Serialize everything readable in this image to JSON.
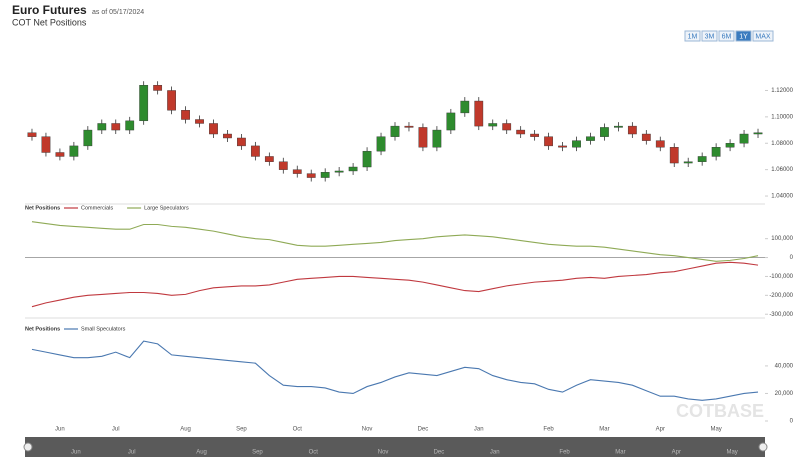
{
  "header": {
    "title": "Euro Futures",
    "as_of": "as of 05/17/2024",
    "subtitle": "COT Net Positions"
  },
  "range_buttons": [
    "1M",
    "3M",
    "6M",
    "1Y",
    "MAX"
  ],
  "active_button": "1Y",
  "watermark": "COTBASE",
  "chart_data": [
    {
      "type": "candlestick",
      "up_color": "#2e8b2e",
      "down_color": "#c0392b",
      "open": [
        1.088,
        1.085,
        1.073,
        1.07,
        1.078,
        1.09,
        1.095,
        1.09,
        1.097,
        1.124,
        1.12,
        1.105,
        1.098,
        1.095,
        1.087,
        1.084,
        1.078,
        1.07,
        1.066,
        1.06,
        1.057,
        1.054,
        1.058,
        1.059,
        1.062,
        1.074,
        1.085,
        1.093,
        1.092,
        1.077,
        1.09,
        1.103,
        1.112,
        1.093,
        1.095,
        1.09,
        1.087,
        1.085,
        1.078,
        1.077,
        1.082,
        1.085,
        1.092,
        1.093,
        1.087,
        1.082,
        1.077,
        1.065,
        1.066,
        1.07,
        1.077,
        1.08,
        1.087
      ],
      "high": [
        1.091,
        1.088,
        1.076,
        1.081,
        1.093,
        1.098,
        1.098,
        1.1,
        1.127,
        1.127,
        1.123,
        1.108,
        1.101,
        1.098,
        1.09,
        1.087,
        1.081,
        1.073,
        1.069,
        1.063,
        1.06,
        1.061,
        1.062,
        1.065,
        1.077,
        1.088,
        1.096,
        1.096,
        1.095,
        1.093,
        1.106,
        1.115,
        1.115,
        1.098,
        1.098,
        1.093,
        1.09,
        1.088,
        1.081,
        1.085,
        1.088,
        1.095,
        1.096,
        1.096,
        1.09,
        1.085,
        1.08,
        1.069,
        1.073,
        1.08,
        1.083,
        1.09,
        1.091
      ],
      "low": [
        1.082,
        1.07,
        1.067,
        1.067,
        1.075,
        1.087,
        1.087,
        1.087,
        1.094,
        1.117,
        1.102,
        1.095,
        1.092,
        1.084,
        1.081,
        1.075,
        1.067,
        1.063,
        1.057,
        1.054,
        1.051,
        1.051,
        1.055,
        1.056,
        1.059,
        1.071,
        1.082,
        1.089,
        1.074,
        1.074,
        1.087,
        1.1,
        1.09,
        1.09,
        1.087,
        1.084,
        1.082,
        1.075,
        1.074,
        1.074,
        1.079,
        1.082,
        1.089,
        1.084,
        1.079,
        1.074,
        1.062,
        1.062,
        1.063,
        1.067,
        1.074,
        1.077,
        1.084
      ],
      "close": [
        1.085,
        1.073,
        1.07,
        1.078,
        1.09,
        1.095,
        1.09,
        1.097,
        1.124,
        1.12,
        1.105,
        1.098,
        1.095,
        1.087,
        1.084,
        1.078,
        1.07,
        1.066,
        1.06,
        1.057,
        1.054,
        1.058,
        1.059,
        1.062,
        1.074,
        1.085,
        1.093,
        1.092,
        1.077,
        1.09,
        1.103,
        1.112,
        1.093,
        1.095,
        1.09,
        1.087,
        1.085,
        1.078,
        1.077,
        1.082,
        1.085,
        1.092,
        1.093,
        1.087,
        1.082,
        1.077,
        1.065,
        1.066,
        1.07,
        1.077,
        1.08,
        1.087,
        1.088
      ],
      "ylim": [
        1.037,
        1.134
      ],
      "yticks": [
        {
          "value": 1.04,
          "label": "1.04000"
        },
        {
          "value": 1.06,
          "label": "1.06000"
        },
        {
          "value": 1.08,
          "label": "1.08000"
        },
        {
          "value": 1.1,
          "label": "1.10000"
        },
        {
          "value": 1.12,
          "label": "1.12000"
        }
      ]
    },
    {
      "type": "line",
      "legend_title": "Net Positions",
      "series": [
        {
          "name": "Commercials",
          "color": "#c0393f",
          "values": [
            -260000,
            -240000,
            -225000,
            -210000,
            -200000,
            -195000,
            -190000,
            -185000,
            -185000,
            -190000,
            -200000,
            -195000,
            -175000,
            -160000,
            -155000,
            -150000,
            -150000,
            -145000,
            -130000,
            -115000,
            -110000,
            -105000,
            -100000,
            -100000,
            -105000,
            -110000,
            -115000,
            -120000,
            -130000,
            -145000,
            -160000,
            -175000,
            -180000,
            -165000,
            -150000,
            -140000,
            -130000,
            -125000,
            -120000,
            -110000,
            -105000,
            -110000,
            -100000,
            -95000,
            -90000,
            -80000,
            -75000,
            -60000,
            -45000,
            -30000,
            -25000,
            -30000,
            -40000
          ]
        },
        {
          "name": "Large Speculators",
          "color": "#8faa56",
          "values": [
            190000,
            180000,
            170000,
            165000,
            160000,
            155000,
            150000,
            150000,
            175000,
            175000,
            165000,
            160000,
            150000,
            140000,
            125000,
            110000,
            100000,
            95000,
            80000,
            65000,
            60000,
            60000,
            65000,
            70000,
            75000,
            80000,
            90000,
            95000,
            100000,
            110000,
            115000,
            120000,
            115000,
            110000,
            100000,
            90000,
            80000,
            70000,
            65000,
            60000,
            60000,
            55000,
            45000,
            35000,
            25000,
            15000,
            10000,
            0,
            -10000,
            -20000,
            -15000,
            -5000,
            10000
          ]
        }
      ],
      "ylim": [
        -320000,
        220000
      ],
      "yticks": [
        {
          "value": -300000,
          "label": "-300,000"
        },
        {
          "value": -200000,
          "label": "-200,000"
        },
        {
          "value": -100000,
          "label": "-100,000"
        },
        0,
        {
          "value": 100000,
          "label": "100,000"
        }
      ]
    },
    {
      "type": "line",
      "legend_title": "Net Positions",
      "categories": [
        null,
        null,
        "Jun",
        null,
        null,
        null,
        "Jul",
        null,
        null,
        null,
        null,
        "Aug",
        null,
        null,
        null,
        "Sep",
        null,
        null,
        null,
        "Oct",
        null,
        null,
        null,
        null,
        "Nov",
        null,
        null,
        null,
        "Dec",
        null,
        null,
        null,
        "Jan",
        null,
        null,
        null,
        null,
        "Feb",
        null,
        null,
        null,
        "Mar",
        null,
        null,
        null,
        "Apr",
        null,
        null,
        null,
        "May",
        null,
        null,
        null
      ],
      "series": [
        {
          "name": "Small Speculators",
          "color": "#4a78b0",
          "values": [
            52000,
            50000,
            48000,
            46000,
            46000,
            47000,
            50000,
            46000,
            58000,
            56000,
            48000,
            47000,
            46000,
            45000,
            44000,
            43000,
            42000,
            33000,
            26000,
            25000,
            25000,
            24000,
            21000,
            20000,
            25000,
            28000,
            32000,
            35000,
            34000,
            33000,
            36000,
            39000,
            38000,
            33000,
            30000,
            28000,
            27000,
            23000,
            21000,
            26000,
            30000,
            29000,
            28000,
            26000,
            22000,
            18000,
            18000,
            16000,
            15000,
            16000,
            18000,
            20000,
            21000
          ]
        }
      ],
      "ylim": [
        0,
        61000
      ],
      "yticks": [
        0,
        {
          "value": 20000,
          "label": "20,000"
        },
        {
          "value": 40000,
          "label": "40,000"
        }
      ]
    }
  ]
}
